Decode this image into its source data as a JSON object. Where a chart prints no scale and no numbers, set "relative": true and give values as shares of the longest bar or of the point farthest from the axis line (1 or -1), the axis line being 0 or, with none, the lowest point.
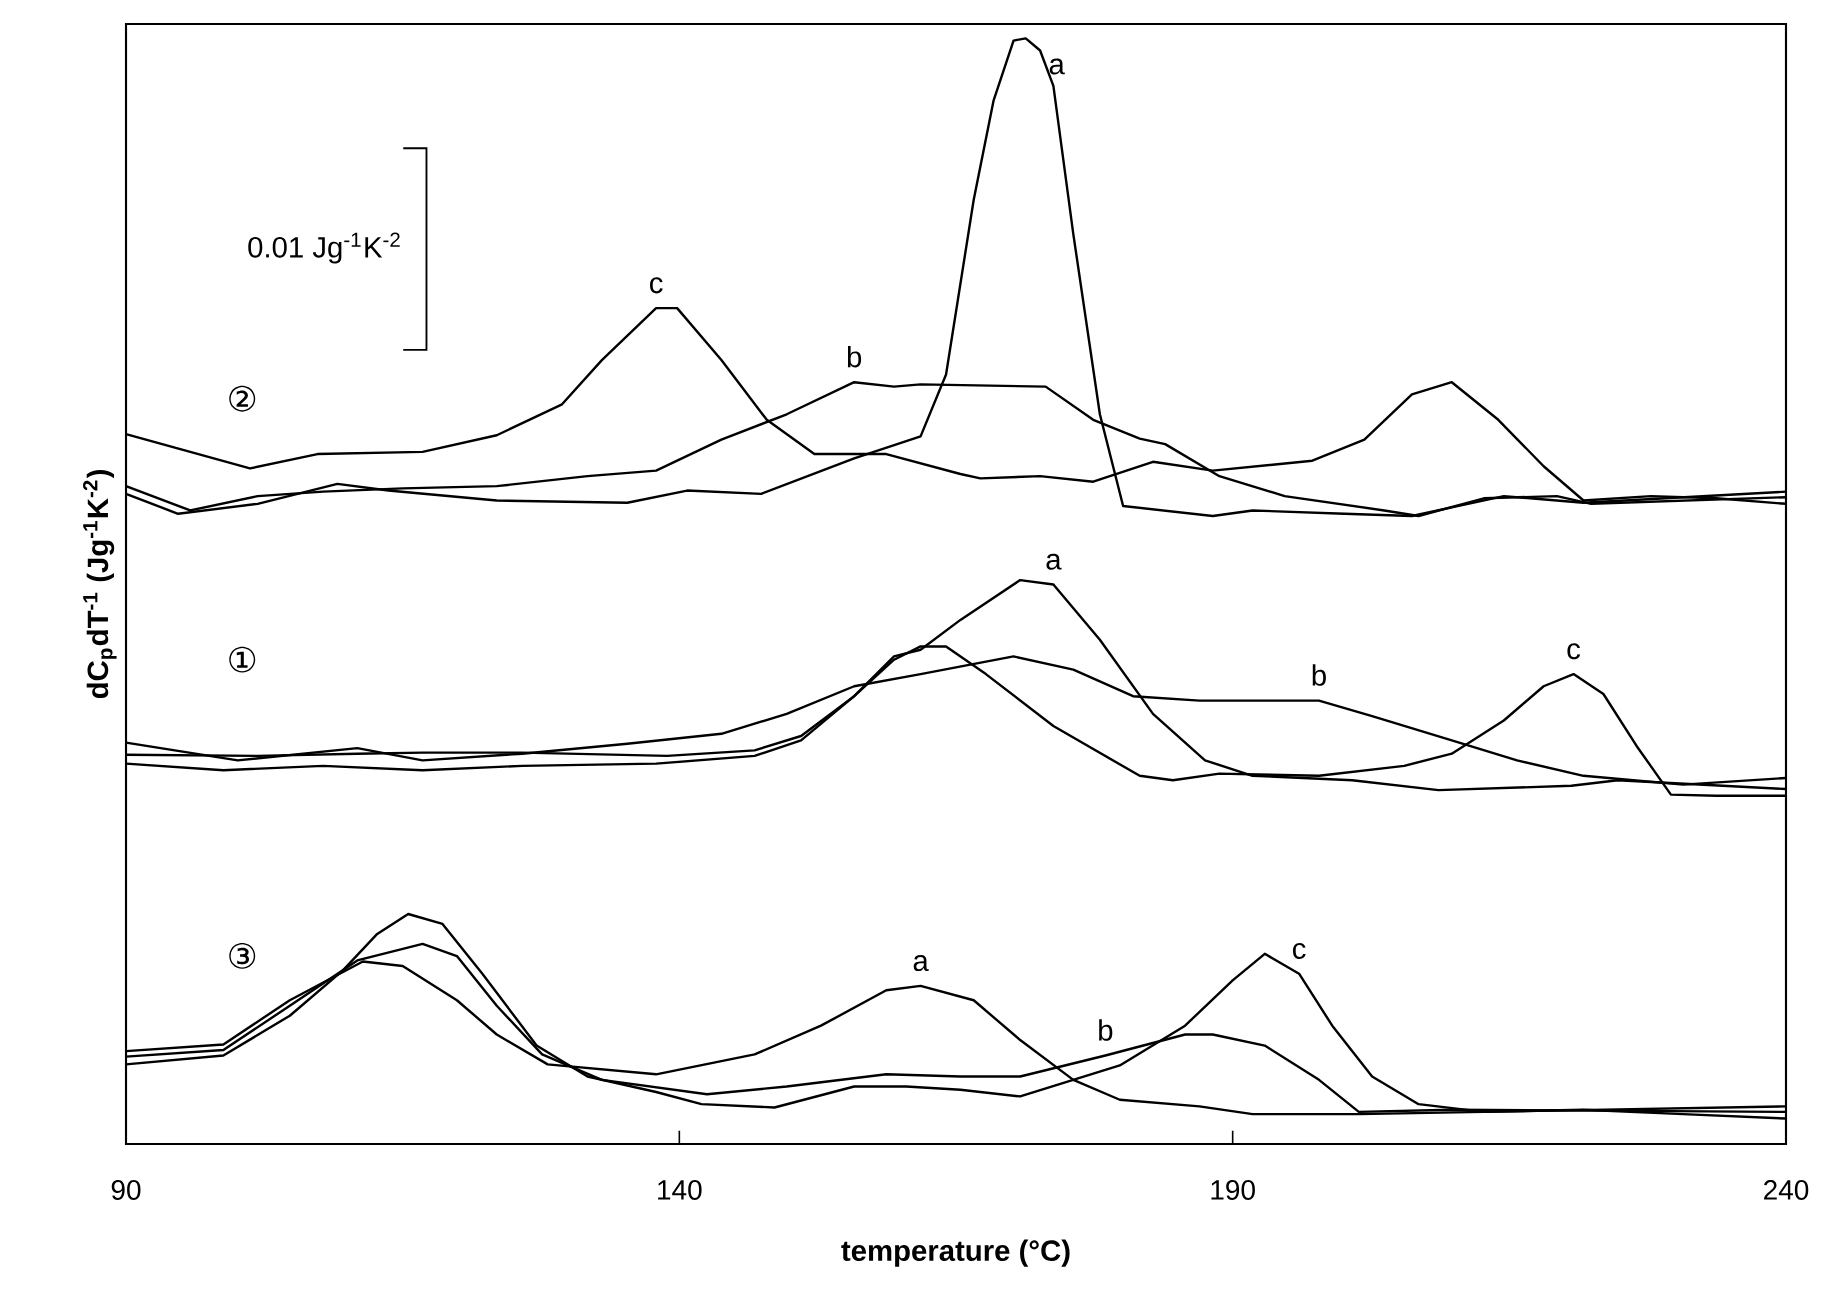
{
  "chart_data": {
    "type": "line",
    "relative": true,
    "xlabel": "temperature (°C)",
    "ylabel": "dC$_{p}$dT$^{-1}$ (Jg$^{-1}$K$^{-2}$)",
    "xlim": [
      90,
      240
    ],
    "xticks": [
      90,
      140,
      190,
      240
    ],
    "tick_labels": "x",
    "annotations": [
      "②",
      "①",
      "③",
      "0.01 Jg$^{-1}$K$^{-2}$"
    ],
    "series": [
      {
        "name": "a",
        "color": "#000000",
        "x": [
          90,
          94.7,
          101.9,
          109.1,
          113.7,
          123.5,
          135.3,
          140.7,
          147.4,
          155.8,
          161.8,
          164.1,
          166.6,
          168.4,
          170.2,
          171.3,
          172.6,
          173.8,
          175.6,
          178.0,
          180.1,
          188.2,
          191.8,
          200.1,
          206.2,
          214.5,
          221.7,
          240
        ],
        "values": [
          0.588,
          0.57,
          0.579,
          0.597,
          0.591,
          0.582,
          0.58,
          0.591,
          0.588,
          0.62,
          0.64,
          0.696,
          0.854,
          0.944,
          0.998,
          1.0,
          0.989,
          0.957,
          0.823,
          0.66,
          0.577,
          0.568,
          0.573,
          0.57,
          0.568,
          0.586,
          0.58,
          0.59
        ]
      },
      {
        "name": "b",
        "color": "#000000",
        "x": [
          90,
          95.8,
          101.9,
          107.8,
          115.0,
          123.5,
          131.7,
          137.9,
          143.8,
          149.7,
          155.8,
          159.4,
          161.8,
          173.1,
          177.4,
          181.6,
          183.9,
          188.8,
          194.7,
          203.7,
          206.8,
          212.7,
          219.3,
          222.4,
          240
        ],
        "values": [
          0.595,
          0.573,
          0.586,
          0.59,
          0.593,
          0.595,
          0.604,
          0.609,
          0.637,
          0.66,
          0.689,
          0.685,
          0.687,
          0.685,
          0.655,
          0.638,
          0.633,
          0.604,
          0.586,
          0.573,
          0.568,
          0.584,
          0.586,
          0.579,
          0.585
        ]
      },
      {
        "name": "c",
        "color": "#000000",
        "x": [
          90,
          101.2,
          107.3,
          116.8,
          123.5,
          129.4,
          133.0,
          137.9,
          139.8,
          143.8,
          147.9,
          152.2,
          158.7,
          165.4,
          167.2,
          172.6,
          177.4,
          182.8,
          188.2,
          197.2,
          201.9,
          206.2,
          209.8,
          214.0,
          218.1,
          221.7,
          227.8,
          233.7,
          240
        ],
        "values": [
          0.642,
          0.611,
          0.624,
          0.626,
          0.641,
          0.669,
          0.709,
          0.756,
          0.756,
          0.709,
          0.655,
          0.624,
          0.624,
          0.606,
          0.602,
          0.604,
          0.599,
          0.617,
          0.609,
          0.618,
          0.637,
          0.678,
          0.689,
          0.655,
          0.613,
          0.582,
          0.586,
          0.584,
          0.579
        ]
      },
      {
        "name": "a",
        "color": "#000000",
        "x": [
          90,
          101.9,
          110.9,
          116.8,
          125.8,
          138.9,
          146.8,
          151.0,
          155.8,
          159.4,
          161.8,
          165.4,
          170.8,
          173.8,
          178.0,
          182.8,
          187.5,
          191.8,
          200.8,
          208.6,
          220.6,
          224.8,
          240
        ],
        "values": [
          0.352,
          0.351,
          0.353,
          0.354,
          0.354,
          0.351,
          0.356,
          0.369,
          0.405,
          0.441,
          0.447,
          0.474,
          0.51,
          0.506,
          0.456,
          0.389,
          0.347,
          0.333,
          0.329,
          0.32,
          0.324,
          0.329,
          0.321
        ]
      },
      {
        "name": "b",
        "color": "#000000",
        "x": [
          90,
          100.1,
          110.9,
          116.8,
          125.8,
          135.3,
          143.8,
          149.7,
          155.8,
          161.8,
          170.2,
          175.6,
          181.0,
          187.0,
          197.8,
          202.6,
          209.8,
          215.7,
          221.7,
          230.7,
          240
        ],
        "values": [
          0.363,
          0.347,
          0.358,
          0.347,
          0.353,
          0.362,
          0.371,
          0.389,
          0.414,
          0.425,
          0.441,
          0.429,
          0.405,
          0.401,
          0.401,
          0.387,
          0.365,
          0.347,
          0.333,
          0.325,
          0.331
        ]
      },
      {
        "name": "c",
        "color": "#000000",
        "x": [
          90,
          98.8,
          107.8,
          116.8,
          125.8,
          137.9,
          146.8,
          151.0,
          155.8,
          159.4,
          161.8,
          164.1,
          167.7,
          173.8,
          181.6,
          184.6,
          188.8,
          197.8,
          205.5,
          209.8,
          214.5,
          218.1,
          220.8,
          223.5,
          226.5,
          229.6,
          233.7,
          240
        ],
        "values": [
          0.344,
          0.338,
          0.342,
          0.338,
          0.342,
          0.344,
          0.351,
          0.365,
          0.405,
          0.438,
          0.45,
          0.45,
          0.425,
          0.378,
          0.333,
          0.329,
          0.335,
          0.333,
          0.342,
          0.353,
          0.383,
          0.414,
          0.425,
          0.407,
          0.36,
          0.316,
          0.315,
          0.315
        ]
      },
      {
        "name": "a",
        "color": "#000000",
        "x": [
          90,
          98.8,
          104.8,
          111.4,
          115.0,
          119.9,
          123.5,
          128.1,
          137.9,
          146.8,
          152.8,
          158.7,
          161.8,
          166.6,
          170.8,
          175.6,
          179.8,
          187.0,
          191.8,
          201.4,
          240
        ],
        "values": [
          0.084,
          0.09,
          0.13,
          0.165,
          0.161,
          0.13,
          0.099,
          0.072,
          0.063,
          0.081,
          0.107,
          0.139,
          0.143,
          0.13,
          0.094,
          0.058,
          0.04,
          0.034,
          0.027,
          0.027,
          0.034
        ]
      },
      {
        "name": "b",
        "color": "#000000",
        "x": [
          90,
          98.8,
          104.8,
          110.9,
          116.8,
          119.9,
          123.5,
          127.6,
          133.0,
          142.5,
          149.7,
          158.7,
          165.4,
          170.8,
          178.5,
          185.7,
          188.2,
          192.9,
          197.8,
          201.4,
          209.8,
          240
        ],
        "values": [
          0.079,
          0.085,
          0.125,
          0.166,
          0.181,
          0.17,
          0.125,
          0.081,
          0.058,
          0.045,
          0.052,
          0.063,
          0.061,
          0.061,
          0.08,
          0.099,
          0.099,
          0.089,
          0.058,
          0.029,
          0.031,
          0.029
        ]
      },
      {
        "name": "c",
        "color": "#000000",
        "x": [
          90,
          98.8,
          104.8,
          109.6,
          112.7,
          115.5,
          118.6,
          122.2,
          127.1,
          131.7,
          137.9,
          142.0,
          148.6,
          155.8,
          160.5,
          165.4,
          170.8,
          179.8,
          185.7,
          190.0,
          192.9,
          196.0,
          199.0,
          202.6,
          206.8,
          212.7,
          221.7,
          230.7,
          240
        ],
        "values": [
          0.072,
          0.08,
          0.116,
          0.157,
          0.19,
          0.208,
          0.199,
          0.154,
          0.089,
          0.061,
          0.047,
          0.036,
          0.033,
          0.052,
          0.052,
          0.049,
          0.043,
          0.071,
          0.107,
          0.148,
          0.172,
          0.154,
          0.107,
          0.061,
          0.036,
          0.029,
          0.031,
          0.027,
          0.023
        ]
      }
    ]
  }
}
